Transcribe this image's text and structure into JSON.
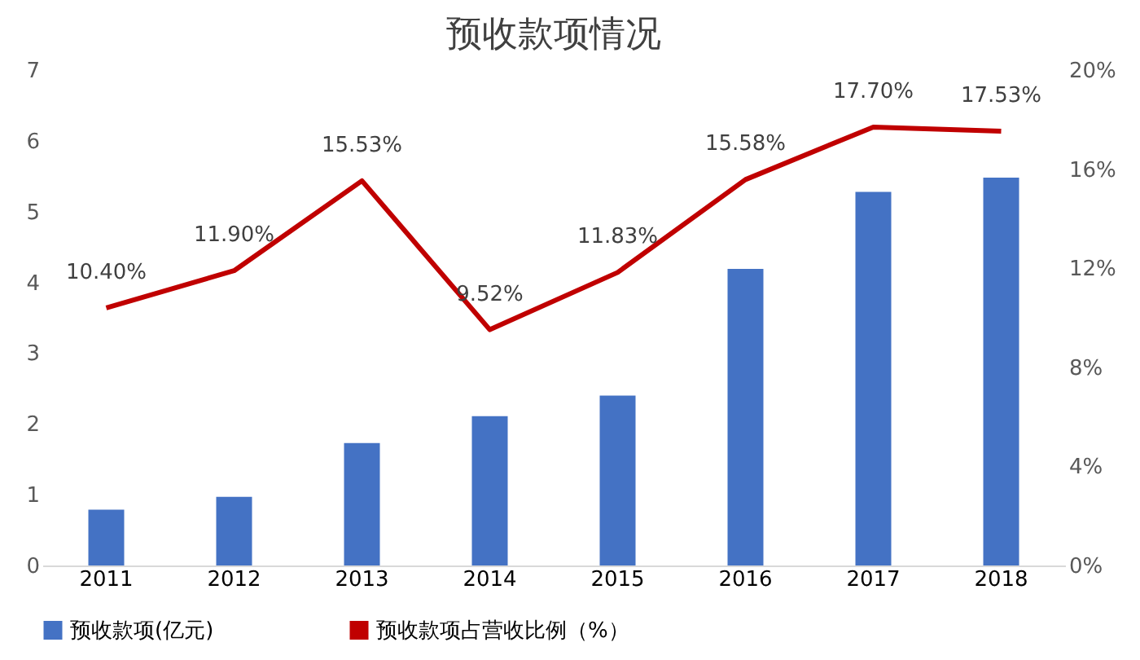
{
  "chart_data": {
    "type": "bar",
    "title": "预收款项情况",
    "categories": [
      "2011",
      "2012",
      "2013",
      "2014",
      "2015",
      "2016",
      "2017",
      "2018"
    ],
    "series": [
      {
        "name": "预收款项(亿元)",
        "color": "#4472c4",
        "values": [
          0.79,
          0.97,
          1.73,
          2.11,
          2.4,
          4.19,
          5.28,
          5.48
        ]
      },
      {
        "name": "预收款项占营收比例（%）",
        "color": "#c00000",
        "type": "line",
        "axis": "y2",
        "values": [
          10.4,
          11.9,
          15.53,
          9.52,
          11.83,
          15.58,
          17.7,
          17.53
        ],
        "value_labels": [
          "10.40%",
          "11.90%",
          "15.53%",
          "9.52%",
          "11.83%",
          "15.58%",
          "17.70%",
          "17.53%"
        ]
      }
    ],
    "ylim": [
      0,
      7
    ],
    "yticks": [
      0,
      1,
      2,
      3,
      4,
      5,
      6,
      7
    ],
    "y2lim": [
      0,
      20
    ],
    "y2ticks": [
      {
        "value": 0,
        "label": "0%"
      },
      {
        "value": 4,
        "label": "4%"
      },
      {
        "value": 8,
        "label": "8%"
      },
      {
        "value": 12,
        "label": "12%"
      },
      {
        "value": 16,
        "label": "16%"
      },
      {
        "value": 20,
        "label": "20%"
      }
    ],
    "grid": false,
    "legend": "bottom",
    "marker": "none",
    "line_style": "solid"
  }
}
